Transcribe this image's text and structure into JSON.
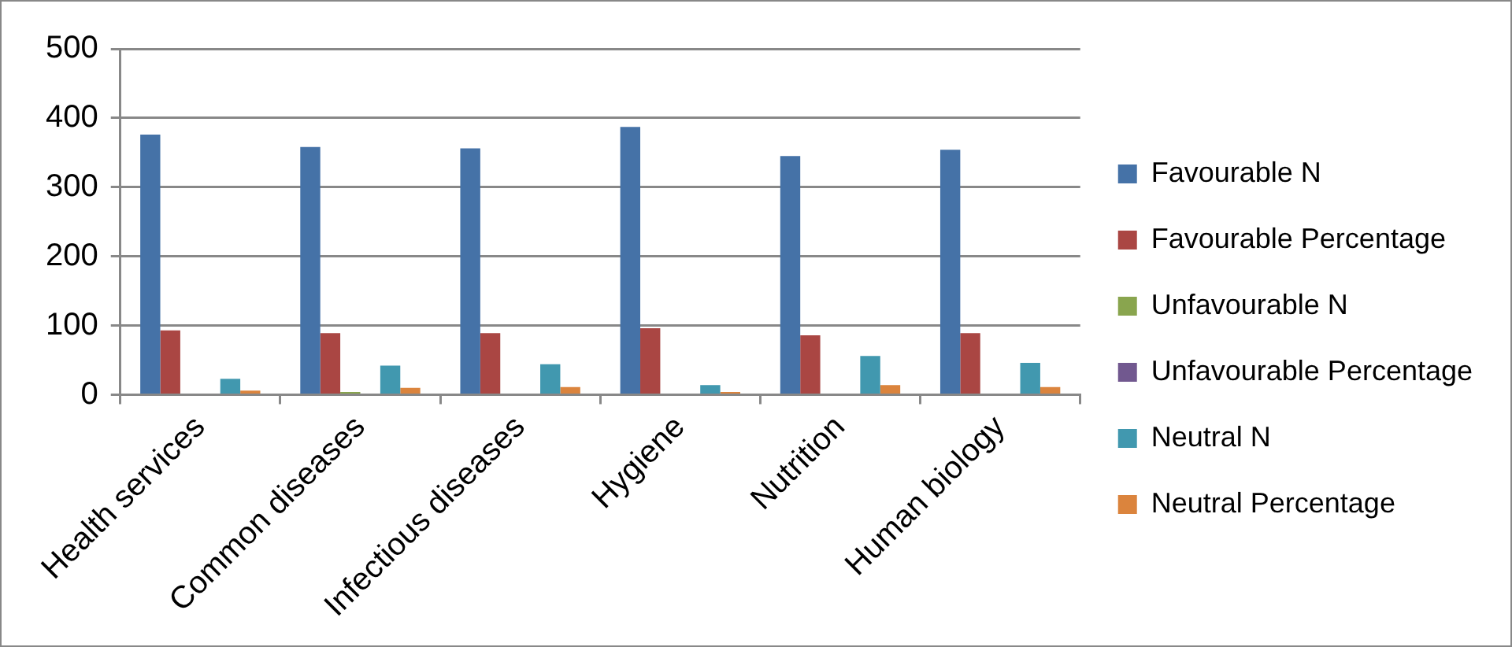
{
  "chart_data": {
    "type": "bar",
    "categories": [
      "Health services",
      "Common diseases",
      "Infectious diseases",
      "Hygiene",
      "Nutrition",
      "Human biology"
    ],
    "series": [
      {
        "name": "Favourable N",
        "color": "#4572a7",
        "values": [
          376,
          358,
          356,
          387,
          345,
          354
        ]
      },
      {
        "name": "Favourable Percentage",
        "color": "#aa4643",
        "values": [
          93,
          89,
          89,
          96,
          86,
          89
        ]
      },
      {
        "name": "Unfavourable N",
        "color": "#89a54e",
        "values": [
          0,
          4,
          0,
          0,
          0,
          0
        ]
      },
      {
        "name": "Unfavourable Percentage",
        "color": "#71588f",
        "values": [
          0,
          0,
          0,
          0,
          0,
          0
        ]
      },
      {
        "name": "Neutral N",
        "color": "#4198af",
        "values": [
          23,
          42,
          44,
          14,
          56,
          46
        ]
      },
      {
        "name": "Neutral Percentage",
        "color": "#db843d",
        "values": [
          6,
          10,
          11,
          4,
          14,
          11
        ]
      }
    ],
    "ylim": [
      0,
      500
    ],
    "yticks": [
      0,
      100,
      200,
      300,
      400,
      500
    ],
    "grid": "y",
    "legend": "right"
  }
}
